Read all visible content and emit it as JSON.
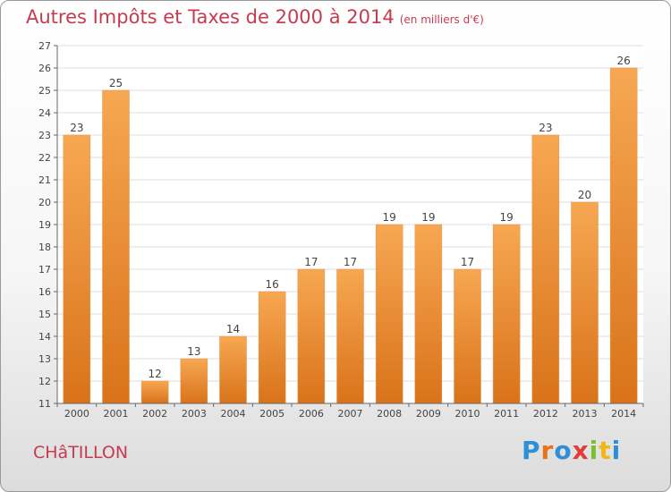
{
  "header": {
    "title": "Autres Impôts et Taxes de 2000 à 2014",
    "subtitle": "(en milliers d'€)"
  },
  "footer": {
    "place": "CHâTILLON"
  },
  "logo": {
    "letters": [
      "P",
      "r",
      "o",
      "x",
      "i",
      "t",
      "i"
    ],
    "colors": [
      "#2e8fd6",
      "#e8731c",
      "#2e8fd6",
      "#e13c3c",
      "#7bbf2a",
      "#f2b615",
      "#2e8fd6"
    ]
  },
  "chart_data": {
    "type": "bar",
    "title": "Autres Impôts et Taxes de 2000 à 2014",
    "xlabel": "",
    "ylabel": "",
    "categories": [
      "2000",
      "2001",
      "2002",
      "2003",
      "2004",
      "2005",
      "2006",
      "2007",
      "2008",
      "2009",
      "2010",
      "2011",
      "2012",
      "2013",
      "2014"
    ],
    "values": [
      23,
      25,
      12,
      13,
      14,
      16,
      17,
      17,
      19,
      19,
      17,
      19,
      23,
      20,
      26
    ],
    "ylim": [
      11,
      27
    ],
    "yticks": [
      11,
      12,
      13,
      14,
      15,
      16,
      17,
      18,
      19,
      20,
      21,
      22,
      23,
      24,
      25,
      26,
      27
    ],
    "grid": true,
    "bar_color": "#f08a2c"
  }
}
